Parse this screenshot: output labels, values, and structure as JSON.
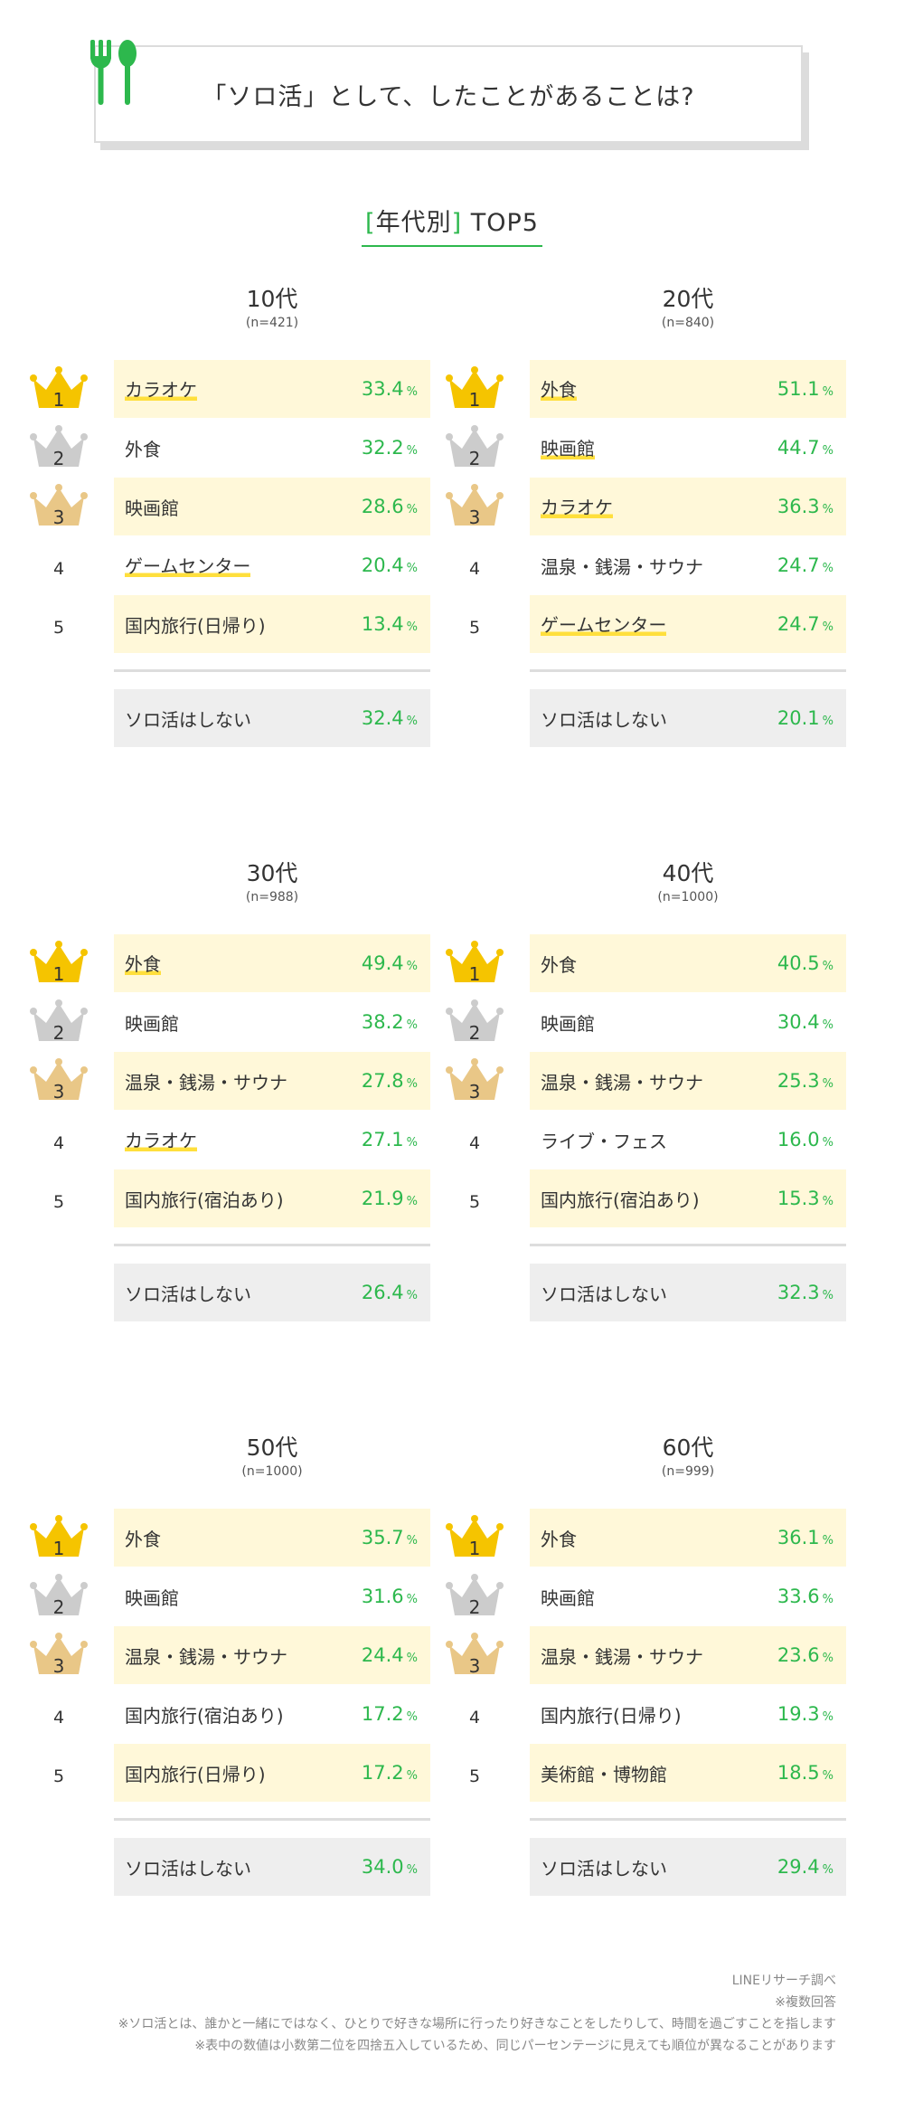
{
  "header": {
    "title": "「ソロ活」として、したことがあることは?",
    "icon": "fork-spoon-icon"
  },
  "subtitle": {
    "open_bracket": "[",
    "text": "年代別",
    "close_bracket": "]",
    "suffix": "TOP5"
  },
  "colors": {
    "accent_green": "#2db84d",
    "highlight_yellow": "#fff8d9",
    "underline_yellow": "#ffdf3c",
    "gold": "#f5c400",
    "silver": "#cccccc",
    "bronze": "#e9c787"
  },
  "pct_unit": "%",
  "chart_data": [
    {
      "type": "table",
      "title": "10代",
      "sample": "(n=421)",
      "rows": [
        {
          "rank": "1",
          "label": "カラオケ",
          "value": "33.4",
          "underline": true
        },
        {
          "rank": "2",
          "label": "外食",
          "value": "32.2",
          "underline": false
        },
        {
          "rank": "3",
          "label": "映画館",
          "value": "28.6",
          "underline": false
        },
        {
          "rank": "4",
          "label": "ゲームセンター",
          "value": "20.4",
          "underline": true
        },
        {
          "rank": "5",
          "label": "国内旅行(日帰り)",
          "value": "13.4",
          "underline": false
        }
      ],
      "none": {
        "label": "ソロ活はしない",
        "value": "32.4"
      }
    },
    {
      "type": "table",
      "title": "20代",
      "sample": "(n=840)",
      "rows": [
        {
          "rank": "1",
          "label": "外食",
          "value": "51.1",
          "underline": true
        },
        {
          "rank": "2",
          "label": "映画館",
          "value": "44.7",
          "underline": true
        },
        {
          "rank": "3",
          "label": "カラオケ",
          "value": "36.3",
          "underline": true
        },
        {
          "rank": "4",
          "label": "温泉・銭湯・サウナ",
          "value": "24.7",
          "underline": false
        },
        {
          "rank": "5",
          "label": "ゲームセンター",
          "value": "24.7",
          "underline": true
        }
      ],
      "none": {
        "label": "ソロ活はしない",
        "value": "20.1"
      }
    },
    {
      "type": "table",
      "title": "30代",
      "sample": "(n=988)",
      "rows": [
        {
          "rank": "1",
          "label": "外食",
          "value": "49.4",
          "underline": true
        },
        {
          "rank": "2",
          "label": "映画館",
          "value": "38.2",
          "underline": false
        },
        {
          "rank": "3",
          "label": "温泉・銭湯・サウナ",
          "value": "27.8",
          "underline": false
        },
        {
          "rank": "4",
          "label": "カラオケ",
          "value": "27.1",
          "underline": true
        },
        {
          "rank": "5",
          "label": "国内旅行(宿泊あり)",
          "value": "21.9",
          "underline": false
        }
      ],
      "none": {
        "label": "ソロ活はしない",
        "value": "26.4"
      }
    },
    {
      "type": "table",
      "title": "40代",
      "sample": "(n=1000)",
      "rows": [
        {
          "rank": "1",
          "label": "外食",
          "value": "40.5",
          "underline": false
        },
        {
          "rank": "2",
          "label": "映画館",
          "value": "30.4",
          "underline": false
        },
        {
          "rank": "3",
          "label": "温泉・銭湯・サウナ",
          "value": "25.3",
          "underline": false
        },
        {
          "rank": "4",
          "label": "ライブ・フェス",
          "value": "16.0",
          "underline": false
        },
        {
          "rank": "5",
          "label": "国内旅行(宿泊あり)",
          "value": "15.3",
          "underline": false
        }
      ],
      "none": {
        "label": "ソロ活はしない",
        "value": "32.3"
      }
    },
    {
      "type": "table",
      "title": "50代",
      "sample": "(n=1000)",
      "rows": [
        {
          "rank": "1",
          "label": "外食",
          "value": "35.7",
          "underline": false
        },
        {
          "rank": "2",
          "label": "映画館",
          "value": "31.6",
          "underline": false
        },
        {
          "rank": "3",
          "label": "温泉・銭湯・サウナ",
          "value": "24.4",
          "underline": false
        },
        {
          "rank": "4",
          "label": "国内旅行(宿泊あり)",
          "value": "17.2",
          "underline": false
        },
        {
          "rank": "5",
          "label": "国内旅行(日帰り)",
          "value": "17.2",
          "underline": false
        }
      ],
      "none": {
        "label": "ソロ活はしない",
        "value": "34.0"
      }
    },
    {
      "type": "table",
      "title": "60代",
      "sample": "(n=999)",
      "rows": [
        {
          "rank": "1",
          "label": "外食",
          "value": "36.1",
          "underline": false
        },
        {
          "rank": "2",
          "label": "映画館",
          "value": "33.6",
          "underline": false
        },
        {
          "rank": "3",
          "label": "温泉・銭湯・サウナ",
          "value": "23.6",
          "underline": false
        },
        {
          "rank": "4",
          "label": "国内旅行(日帰り)",
          "value": "19.3",
          "underline": false
        },
        {
          "rank": "5",
          "label": "美術館・博物館",
          "value": "18.5",
          "underline": false
        }
      ],
      "none": {
        "label": "ソロ活はしない",
        "value": "29.4"
      }
    }
  ],
  "notes": [
    "LINEリサーチ調べ",
    "※複数回答",
    "※ソロ活とは、誰かと一緒にではなく、ひとりで好きな場所に行ったり好きなことをしたりして、時間を過ごすことを指します",
    "※表中の数値は小数第二位を四捨五入しているため、同じパーセンテージに見えても順位が異なることがあります"
  ]
}
